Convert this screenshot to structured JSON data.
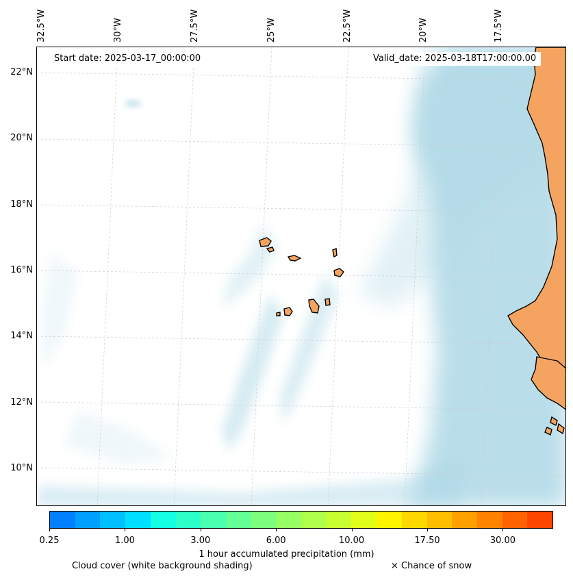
{
  "header": {
    "start_date": "Start date: 2025-03-17_00:00:00",
    "valid_date": "Valid_date: 2025-03-18T17:00:00.00"
  },
  "axes": {
    "longitude_labels": [
      "32.5°W",
      "30°W",
      "27.5°W",
      "25°W",
      "22.5°W",
      "20°W",
      "17.5°W"
    ],
    "latitude_labels": [
      "22°N",
      "20°N",
      "18°N",
      "16°N",
      "14°N",
      "12°N",
      "10°N"
    ]
  },
  "colorbar": {
    "label": "1 hour accumulated precipitation (mm)",
    "tick_labels": [
      "0.25",
      "1.00",
      "3.00",
      "6.00",
      "10.00",
      "17.50",
      "30.00"
    ],
    "colors": [
      "#0080ff",
      "#00a0ff",
      "#00bfff",
      "#00dfff",
      "#14ffe1",
      "#2effc9",
      "#4bffb1",
      "#64ff96",
      "#7dff7d",
      "#96ff64",
      "#afff4b",
      "#c8ff32",
      "#e1ff19",
      "#fff500",
      "#ffd700",
      "#ffbe00",
      "#ffa000",
      "#ff8200",
      "#ff6400",
      "#ff4600"
    ]
  },
  "legend": {
    "cloud_cover": "Cloud cover (white background shading)",
    "snow": "× Chance of snow"
  },
  "map_colors": {
    "land": "#f4a460",
    "cloud": "#add8e6",
    "coastline": "#000000",
    "gridline": "#cccccc"
  }
}
